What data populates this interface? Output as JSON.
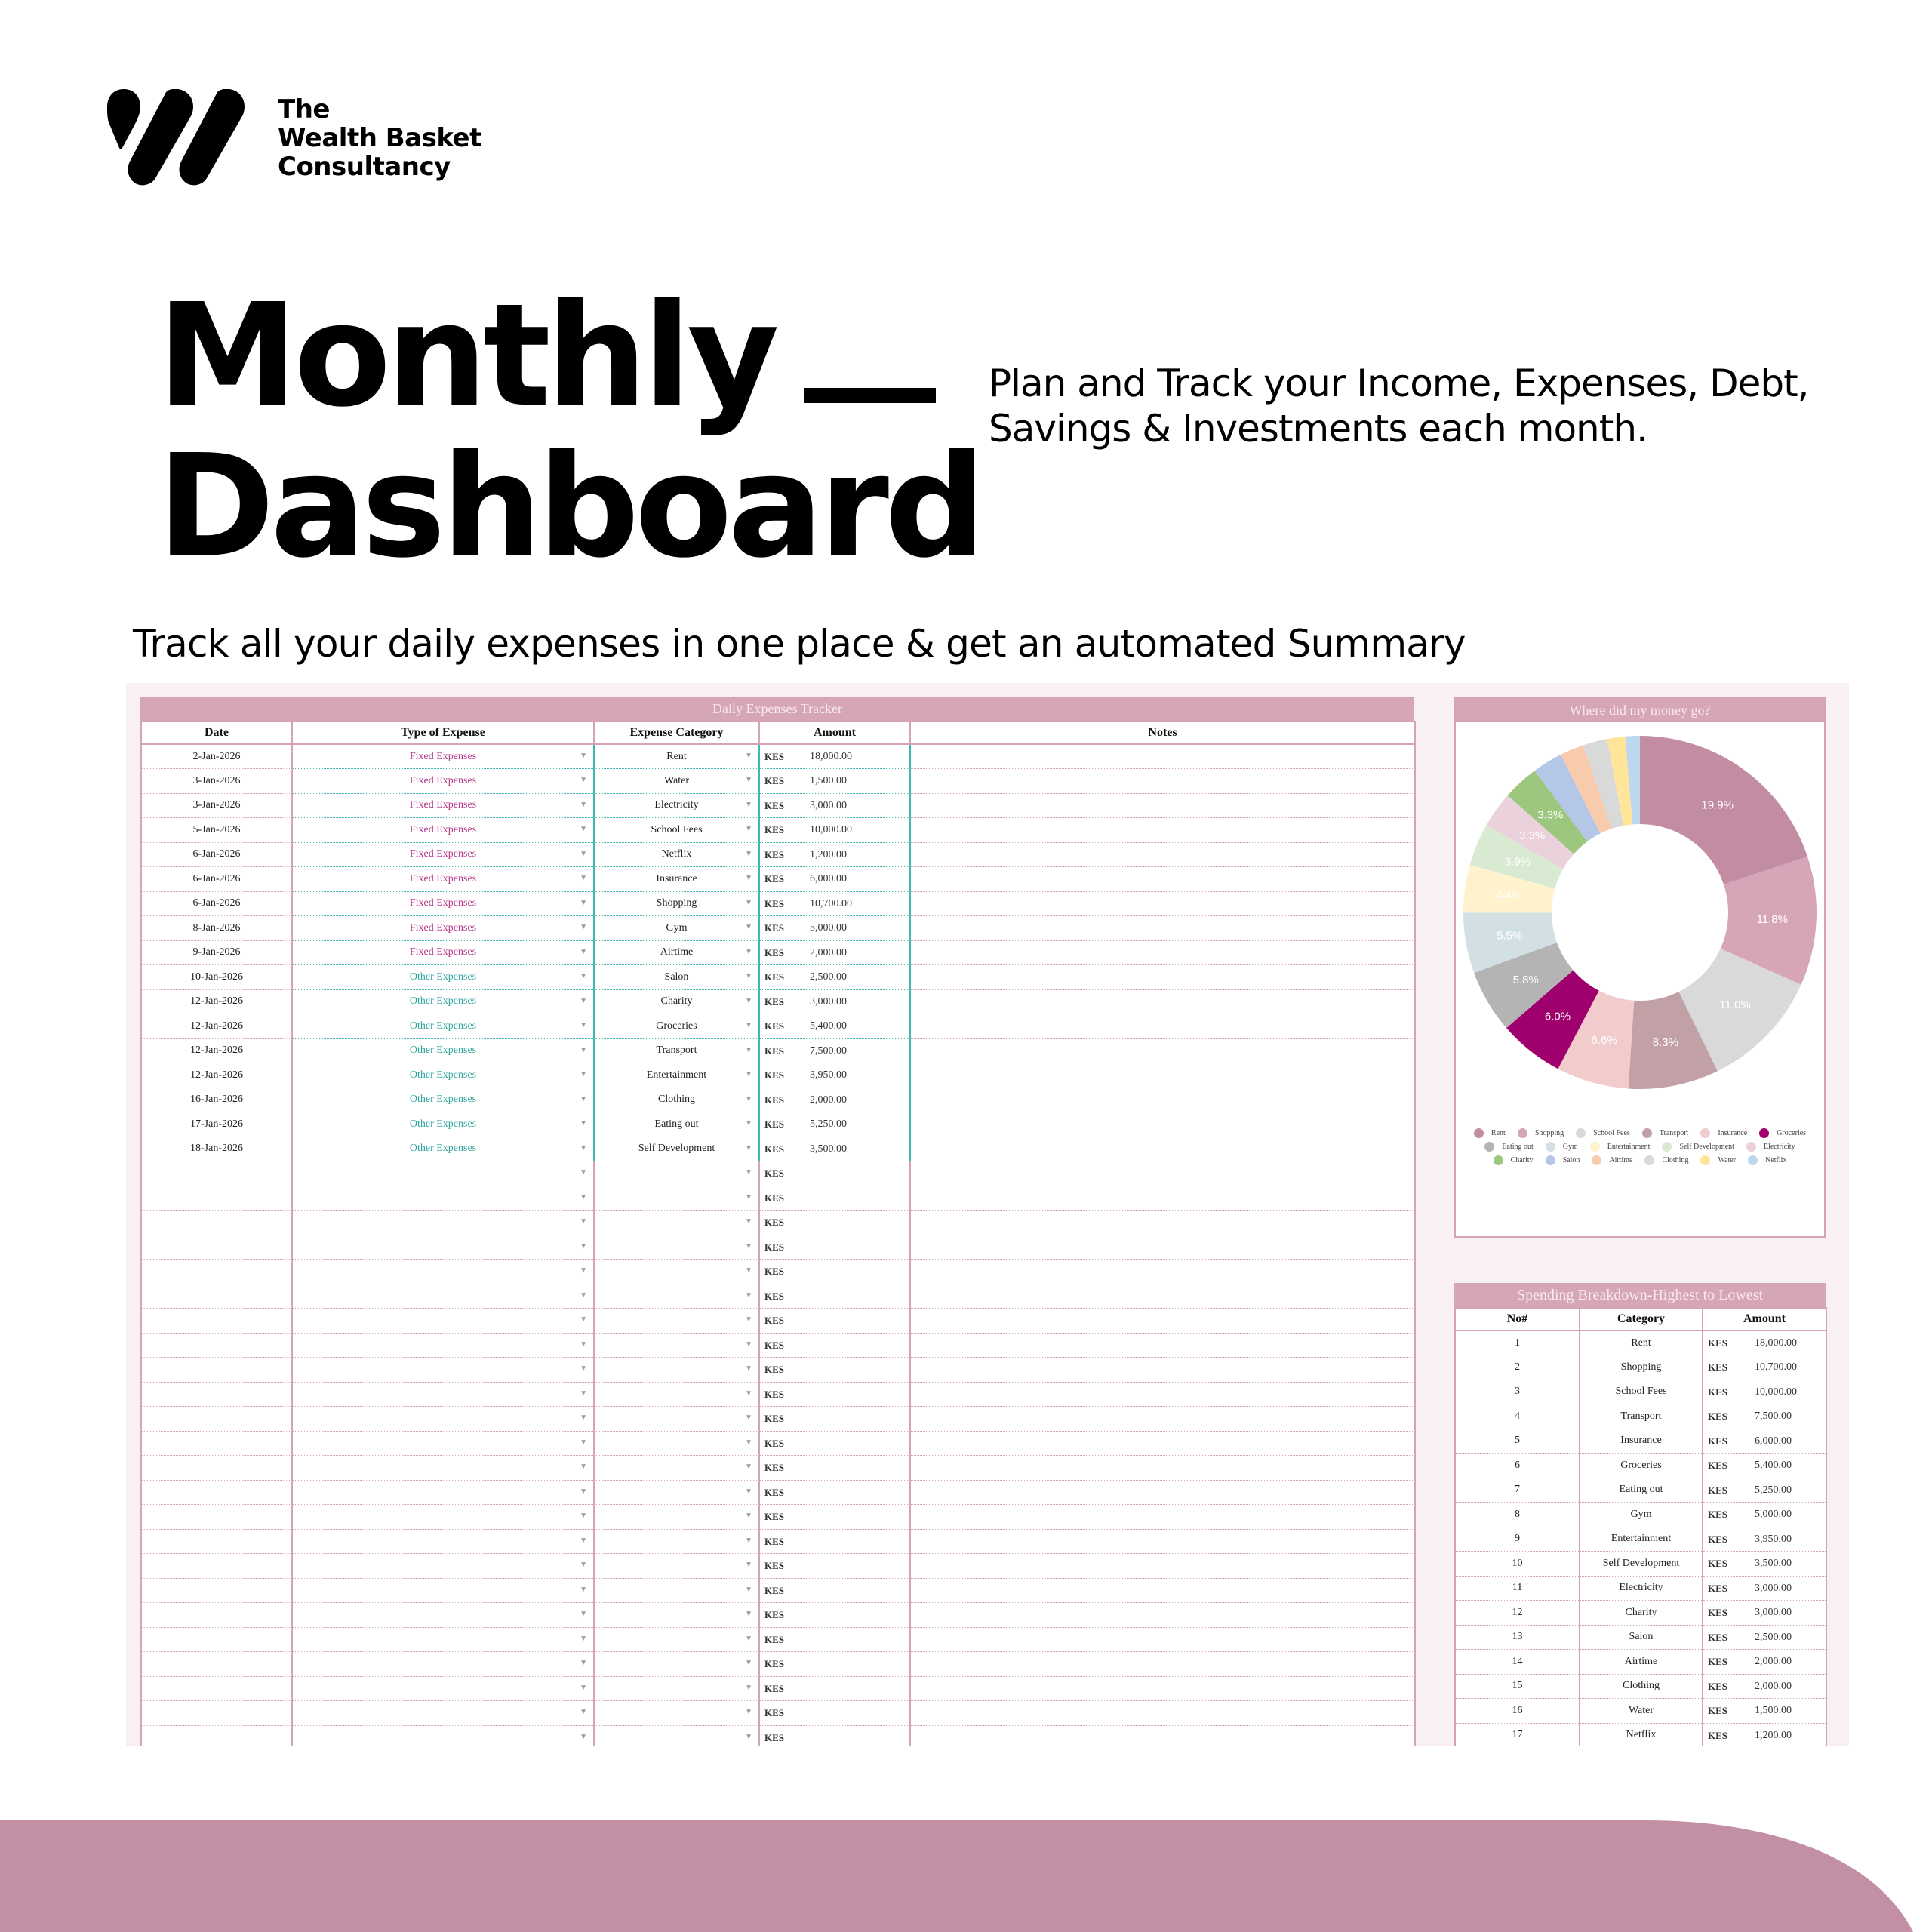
{
  "brand": {
    "logo_icon": "wealth-basket-w-logo",
    "line1": "The",
    "line2": "Wealth Basket",
    "line3": "Consultancy"
  },
  "hero": {
    "title_line1": "Monthly",
    "title_line2": "Dashboard",
    "tagline": "Plan and Track your Income, Expenses, Debt, Savings & Investments each month.",
    "subline": "Track all your daily expenses in one place & get an automated Summary"
  },
  "tracker": {
    "title": "Daily Expenses Tracker",
    "columns": [
      "Date",
      "Type of Expense",
      "Expense Category",
      "Amount",
      "Notes"
    ],
    "currency": "KES",
    "dropdown_icon": "▼",
    "rows": [
      {
        "date": "2-Jan-2026",
        "type": "Fixed Expenses",
        "category": "Rent",
        "amount": "18,000.00"
      },
      {
        "date": "3-Jan-2026",
        "type": "Fixed Expenses",
        "category": "Water",
        "amount": "1,500.00"
      },
      {
        "date": "3-Jan-2026",
        "type": "Fixed Expenses",
        "category": "Electricity",
        "amount": "3,000.00"
      },
      {
        "date": "5-Jan-2026",
        "type": "Fixed Expenses",
        "category": "School Fees",
        "amount": "10,000.00"
      },
      {
        "date": "6-Jan-2026",
        "type": "Fixed Expenses",
        "category": "Netflix",
        "amount": "1,200.00"
      },
      {
        "date": "6-Jan-2026",
        "type": "Fixed Expenses",
        "category": "Insurance",
        "amount": "6,000.00"
      },
      {
        "date": "6-Jan-2026",
        "type": "Fixed Expenses",
        "category": "Shopping",
        "amount": "10,700.00"
      },
      {
        "date": "8-Jan-2026",
        "type": "Fixed Expenses",
        "category": "Gym",
        "amount": "5,000.00"
      },
      {
        "date": "9-Jan-2026",
        "type": "Fixed Expenses",
        "category": "Airtime",
        "amount": "2,000.00"
      },
      {
        "date": "10-Jan-2026",
        "type": "Other Expenses",
        "category": "Salon",
        "amount": "2,500.00"
      },
      {
        "date": "12-Jan-2026",
        "type": "Other Expenses",
        "category": "Charity",
        "amount": "3,000.00"
      },
      {
        "date": "12-Jan-2026",
        "type": "Other Expenses",
        "category": "Groceries",
        "amount": "5,400.00"
      },
      {
        "date": "12-Jan-2026",
        "type": "Other Expenses",
        "category": "Transport",
        "amount": "7,500.00"
      },
      {
        "date": "12-Jan-2026",
        "type": "Other Expenses",
        "category": "Entertainment",
        "amount": "3,950.00"
      },
      {
        "date": "16-Jan-2026",
        "type": "Other Expenses",
        "category": "Clothing",
        "amount": "2,000.00"
      },
      {
        "date": "17-Jan-2026",
        "type": "Other Expenses",
        "category": "Eating out",
        "amount": "5,250.00"
      },
      {
        "date": "18-Jan-2026",
        "type": "Other Expenses",
        "category": "Self Development",
        "amount": "3,500.00"
      }
    ],
    "empty_rows": 24
  },
  "chart": {
    "title": "Where did my money go?"
  },
  "chart_data": {
    "type": "pie",
    "title": "Where did my money go?",
    "donut": true,
    "categories": [
      "Rent",
      "Shopping",
      "School Fees",
      "Transport",
      "Insurance",
      "Groceries",
      "Eating out",
      "Gym",
      "Entertainment",
      "Self Development",
      "Electricity",
      "Charity",
      "Salon",
      "Airtime",
      "Clothing",
      "Water",
      "Netflix"
    ],
    "values": [
      18000,
      10700,
      10000,
      7500,
      6000,
      5400,
      5250,
      5000,
      3950,
      3500,
      3000,
      3000,
      2500,
      2000,
      2000,
      1500,
      1200
    ],
    "percent_labels": [
      "19.9%",
      "11.8%",
      "11.0%",
      "8.3%",
      "6.6%",
      "6.0%",
      "5.8%",
      "5.5%",
      "4.4%",
      "3.9%",
      "3.3%",
      "3.3%",
      "",
      "",
      "",
      "",
      ""
    ],
    "colors": [
      "#c28ca2",
      "#d6a5b8",
      "#d9d9d9",
      "#c1a1a5",
      "#f2cbcc",
      "#a0006d",
      "#b4b4b4",
      "#d2e0e4",
      "#fff2cc",
      "#d9ead3",
      "#ead1dc",
      "#9dc67f",
      "#b4c7e7",
      "#f8cbad",
      "#d9d9d9",
      "#ffe599",
      "#bdd7ee"
    ],
    "legend_position": "bottom"
  },
  "breakdown": {
    "title": "Spending Breakdown-Highest to Lowest",
    "columns": [
      "No#",
      "Category",
      "Amount"
    ],
    "currency": "KES",
    "rows": [
      {
        "no": "1",
        "category": "Rent",
        "amount": "18,000.00"
      },
      {
        "no": "2",
        "category": "Shopping",
        "amount": "10,700.00"
      },
      {
        "no": "3",
        "category": "School Fees",
        "amount": "10,000.00"
      },
      {
        "no": "4",
        "category": "Transport",
        "amount": "7,500.00"
      },
      {
        "no": "5",
        "category": "Insurance",
        "amount": "6,000.00"
      },
      {
        "no": "6",
        "category": "Groceries",
        "amount": "5,400.00"
      },
      {
        "no": "7",
        "category": "Eating out",
        "amount": "5,250.00"
      },
      {
        "no": "8",
        "category": "Gym",
        "amount": "5,000.00"
      },
      {
        "no": "9",
        "category": "Entertainment",
        "amount": "3,950.00"
      },
      {
        "no": "10",
        "category": "Self Development",
        "amount": "3,500.00"
      },
      {
        "no": "11",
        "category": "Electricity",
        "amount": "3,000.00"
      },
      {
        "no": "12",
        "category": "Charity",
        "amount": "3,000.00"
      },
      {
        "no": "13",
        "category": "Salon",
        "amount": "2,500.00"
      },
      {
        "no": "14",
        "category": "Airtime",
        "amount": "2,000.00"
      },
      {
        "no": "15",
        "category": "Clothing",
        "amount": "2,000.00"
      },
      {
        "no": "16",
        "category": "Water",
        "amount": "1,500.00"
      },
      {
        "no": "17",
        "category": "Netflix",
        "amount": "1,200.00"
      }
    ]
  },
  "colors": {
    "accent_pink": "#d7a5b8",
    "banner_mauve": "#c28fa5",
    "sheet_bg": "#f8f0f3",
    "fixed_text": "#b5338a",
    "other_text": "#2fa6a0",
    "teal_border": "#3fb8ad"
  }
}
